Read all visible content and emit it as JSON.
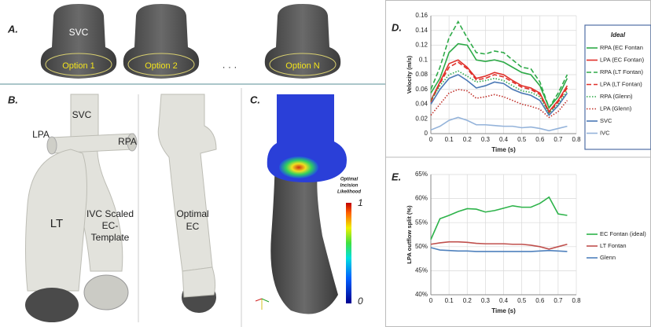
{
  "panels": {
    "a": {
      "label": "A.",
      "vessel": "SVC",
      "options": [
        "Option 1",
        "Option 2",
        "Option N"
      ],
      "ellipsis": "· · ·"
    },
    "b": {
      "label": "B.",
      "svc": "SVC",
      "lpa": "LPA",
      "rpa": "RPA",
      "lt": "LT",
      "template": [
        "IVC Scaled",
        "EC-",
        "Template"
      ],
      "optimal": [
        "Optimal",
        "EC"
      ]
    },
    "c": {
      "label": "C.",
      "colorbar": [
        "Optimal",
        "Incision",
        "Likelihood"
      ],
      "max": "1",
      "min": "0"
    },
    "d": "D.",
    "e": "E."
  },
  "chart_data": [
    {
      "type": "line",
      "xlabel": "Time (s)",
      "ylabel": "Velocity (m/s)",
      "legend_title": "Ideal",
      "grid": true,
      "xlim": [
        0,
        0.8
      ],
      "xticks": [
        0,
        0.1,
        0.2,
        0.3,
        0.4,
        0.5,
        0.6,
        0.7,
        0.8
      ],
      "ylim": [
        0,
        0.16
      ],
      "yticks": [
        0,
        0.02,
        0.04,
        0.06,
        0.08,
        0.1,
        0.12,
        0.14,
        0.16
      ],
      "x": [
        0,
        0.05,
        0.1,
        0.15,
        0.2,
        0.25,
        0.3,
        0.35,
        0.4,
        0.45,
        0.5,
        0.55,
        0.6,
        0.65,
        0.7,
        0.75
      ],
      "series": [
        {
          "name": "RPA (EC Fontan",
          "color": "#2eaa48",
          "style": "solid",
          "values": [
            0.055,
            0.075,
            0.11,
            0.122,
            0.12,
            0.1,
            0.098,
            0.1,
            0.097,
            0.09,
            0.083,
            0.08,
            0.065,
            0.035,
            0.05,
            0.075
          ]
        },
        {
          "name": "LPA (EC Fontan)",
          "color": "#e0302a",
          "style": "solid",
          "values": [
            0.045,
            0.07,
            0.095,
            0.1,
            0.09,
            0.075,
            0.078,
            0.083,
            0.08,
            0.072,
            0.065,
            0.062,
            0.055,
            0.03,
            0.045,
            0.065
          ]
        },
        {
          "name": "RPA (LT Fontan)",
          "color": "#2eaa48",
          "style": "dashed",
          "values": [
            0.06,
            0.09,
            0.13,
            0.152,
            0.13,
            0.11,
            0.108,
            0.112,
            0.11,
            0.1,
            0.09,
            0.088,
            0.07,
            0.035,
            0.055,
            0.08
          ]
        },
        {
          "name": "LPA (LT Fontan)",
          "color": "#e0302a",
          "style": "dashed",
          "values": [
            0.043,
            0.068,
            0.09,
            0.097,
            0.088,
            0.073,
            0.075,
            0.08,
            0.077,
            0.07,
            0.063,
            0.06,
            0.053,
            0.028,
            0.043,
            0.062
          ]
        },
        {
          "name": "RPA (Glenn)",
          "color": "#2eaa48",
          "style": "dotted",
          "values": [
            0.045,
            0.065,
            0.08,
            0.085,
            0.078,
            0.07,
            0.072,
            0.075,
            0.072,
            0.065,
            0.058,
            0.056,
            0.05,
            0.028,
            0.04,
            0.058
          ]
        },
        {
          "name": "LPA (Glenn)",
          "color": "#c0302a",
          "style": "dotted",
          "values": [
            0.025,
            0.04,
            0.055,
            0.06,
            0.058,
            0.048,
            0.05,
            0.053,
            0.05,
            0.045,
            0.04,
            0.037,
            0.033,
            0.022,
            0.03,
            0.045
          ]
        },
        {
          "name": "SVC",
          "color": "#4a78b5",
          "style": "solid",
          "values": [
            0.04,
            0.06,
            0.075,
            0.08,
            0.072,
            0.062,
            0.065,
            0.07,
            0.068,
            0.06,
            0.055,
            0.052,
            0.045,
            0.025,
            0.038,
            0.055
          ]
        },
        {
          "name": "IVC",
          "color": "#94b3da",
          "style": "solid",
          "values": [
            0.005,
            0.01,
            0.018,
            0.022,
            0.018,
            0.012,
            0.012,
            0.011,
            0.01,
            0.01,
            0.008,
            0.009,
            0.007,
            0.004,
            0.007,
            0.01
          ]
        }
      ]
    },
    {
      "type": "line",
      "xlabel": "Time (s)",
      "ylabel": "LPA outflow split (%)",
      "grid": true,
      "xlim": [
        0,
        0.8
      ],
      "xticks": [
        0,
        0.1,
        0.2,
        0.3,
        0.4,
        0.5,
        0.6,
        0.7,
        0.8
      ],
      "ylim": [
        40,
        65
      ],
      "yticks": [
        {
          "value": 40,
          "label": "40%"
        },
        {
          "value": 45,
          "label": "45%"
        },
        {
          "value": 50,
          "label": "50%"
        },
        {
          "value": 55,
          "label": "55%"
        },
        {
          "value": 60,
          "label": "60%"
        },
        {
          "value": 65,
          "label": "65%"
        }
      ],
      "x": [
        0,
        0.05,
        0.1,
        0.15,
        0.2,
        0.25,
        0.3,
        0.35,
        0.4,
        0.45,
        0.5,
        0.55,
        0.6,
        0.65,
        0.7,
        0.75
      ],
      "series": [
        {
          "name": "EC Fontan (ideal)",
          "color": "#2db34a",
          "style": "solid",
          "values": [
            51.5,
            55.8,
            56.5,
            57.3,
            57.9,
            57.8,
            57.2,
            57.5,
            58,
            58.5,
            58.2,
            58.2,
            59,
            60.3,
            56.8,
            56.5
          ]
        },
        {
          "name": "LT Fontan",
          "color": "#c0504d",
          "style": "solid",
          "values": [
            50.5,
            50.8,
            51,
            51,
            50.9,
            50.7,
            50.6,
            50.6,
            50.6,
            50.5,
            50.5,
            50.3,
            50,
            49.5,
            50,
            50.5
          ]
        },
        {
          "name": "Glenn",
          "color": "#4f81bd",
          "style": "solid",
          "values": [
            49.8,
            49.3,
            49.2,
            49.1,
            49.1,
            49,
            49,
            49,
            49,
            49,
            49,
            49,
            49.1,
            49.2,
            49.1,
            49
          ]
        }
      ]
    }
  ]
}
